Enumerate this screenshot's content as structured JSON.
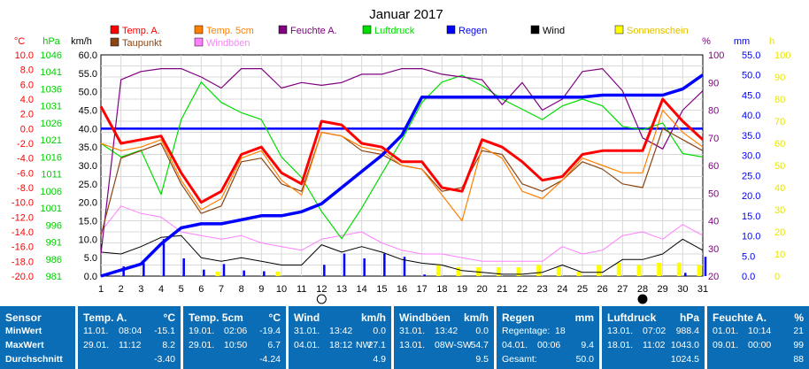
{
  "chart_data": {
    "type": "line",
    "title": "Januar 2017",
    "x": [
      1,
      2,
      3,
      4,
      5,
      6,
      7,
      8,
      9,
      10,
      11,
      12,
      13,
      14,
      15,
      16,
      17,
      18,
      19,
      20,
      21,
      22,
      23,
      24,
      25,
      26,
      27,
      28,
      29,
      30,
      31
    ],
    "axes": {
      "temp_c": {
        "label": "°C",
        "ticks": [
          "10.0",
          "8.0",
          "6.0",
          "4.0",
          "2.0",
          "0.0",
          "-2.0",
          "-4.0",
          "-6.0",
          "-8.0",
          "-10.0",
          "-12.0",
          "-14.0",
          "-16.0",
          "-18.0",
          "-20.0"
        ],
        "range": [
          -20,
          10
        ],
        "color": "#ff0000"
      },
      "pressure_hpa": {
        "label": "hPa",
        "ticks": [
          "1046",
          "1041",
          "1036",
          "1031",
          "1026",
          "1021",
          "1016",
          "1011",
          "1006",
          "1001",
          "996",
          "991",
          "986",
          "981"
        ],
        "range": [
          981,
          1046
        ],
        "color": "#00cc00"
      },
      "wind_kmh": {
        "label": "km/h",
        "ticks": [
          "60.0",
          "55.0",
          "50.0",
          "45.0",
          "40.0",
          "35.0",
          "30.0",
          "25.0",
          "20.0",
          "15.0",
          "10.0",
          "5.0",
          "0.0"
        ],
        "range": [
          0,
          60
        ],
        "color": "#000000"
      },
      "humidity_pct": {
        "label": "%",
        "ticks": [
          "100",
          "90",
          "80",
          "70",
          "60",
          "50",
          "40",
          "30",
          "20"
        ],
        "range": [
          20,
          100
        ],
        "color": "#800080"
      },
      "rain_mm": {
        "label": "mm",
        "ticks": [
          "55.0",
          "50.0",
          "45.0",
          "40.0",
          "35.0",
          "30.0",
          "25.0",
          "20.0",
          "15.0",
          "10.0",
          "5.0",
          "0.0"
        ],
        "range": [
          0,
          55
        ],
        "color": "#0000ff"
      },
      "sun_h": {
        "label": "h",
        "ticks": [
          "100",
          "90",
          "80",
          "70",
          "60",
          "50",
          "40",
          "30",
          "20",
          "10",
          "0"
        ],
        "range": [
          0,
          100
        ],
        "color": "#e6e600"
      }
    },
    "legend": [
      {
        "name": "Temp. A.",
        "color": "#ff0000"
      },
      {
        "name": "Temp. 5cm",
        "color": "#ff8000"
      },
      {
        "name": "Feuchte A.",
        "color": "#800080"
      },
      {
        "name": "Luftdruck",
        "color": "#00dd00"
      },
      {
        "name": "Regen",
        "color": "#0000ff"
      },
      {
        "name": "Wind",
        "color": "#000000"
      },
      {
        "name": "Sonnenschein",
        "color": "#ffff00"
      },
      {
        "name": "Taupunkt",
        "color": "#8b4513"
      },
      {
        "name": "Windböen",
        "color": "#ff80ff"
      }
    ],
    "series": [
      {
        "name": "Temp. A.",
        "axis": "temp_c",
        "color": "#ff0000",
        "width": 3,
        "values": [
          3.0,
          -2.0,
          -1.5,
          -1.0,
          -6.0,
          -10.0,
          -8.5,
          -3.5,
          -2.5,
          -6.0,
          -7.5,
          1.0,
          0.5,
          -2.0,
          -2.5,
          -4.5,
          -4.5,
          -8.0,
          -8.5,
          -1.5,
          -2.5,
          -4.5,
          -7.0,
          -6.5,
          -3.5,
          -3.0,
          -3.0,
          -3.0,
          4.0,
          1.0,
          -1.5
        ]
      },
      {
        "name": "Temp. 5cm",
        "axis": "temp_c",
        "color": "#ff8000",
        "width": 1.2,
        "values": [
          -2.0,
          -3.0,
          -2.5,
          -1.5,
          -7.0,
          -11.0,
          -9.5,
          -4.0,
          -3.0,
          -7.0,
          -9.0,
          -0.5,
          -1.0,
          -2.5,
          -3.0,
          -5.0,
          -5.5,
          -9.0,
          -12.5,
          -2.5,
          -4.0,
          -8.5,
          -9.5,
          -7.0,
          -4.0,
          -5.0,
          -6.0,
          -6.0,
          2.5,
          -0.5,
          -2.5
        ]
      },
      {
        "name": "Taupunkt",
        "axis": "temp_c",
        "color": "#8b4513",
        "width": 1.2,
        "values": [
          -14.5,
          -4.0,
          -3.0,
          -2.0,
          -7.5,
          -11.5,
          -10.5,
          -4.5,
          -4.0,
          -7.5,
          -8.5,
          -0.5,
          -1.0,
          -3.0,
          -3.5,
          -5.0,
          -5.5,
          -8.5,
          -8.0,
          -3.0,
          -3.5,
          -7.5,
          -8.5,
          -7.0,
          -4.5,
          -5.5,
          -7.5,
          -8.0,
          0.0,
          -1.5,
          -3.0
        ]
      },
      {
        "name": "Feuchte A.",
        "axis": "humidity_pct",
        "color": "#800080",
        "width": 1.2,
        "values": [
          28,
          91,
          94,
          95,
          95,
          92,
          88,
          95,
          95,
          88,
          90,
          89,
          90,
          93,
          93,
          95,
          95,
          93,
          92,
          91,
          82,
          90,
          80,
          84,
          94,
          95,
          87,
          70,
          66,
          80,
          87
        ]
      },
      {
        "name": "Luftdruck",
        "axis": "pressure_hpa",
        "color": "#00dd00",
        "width": 1.2,
        "values": [
          1020,
          1016,
          1018,
          1005,
          1027,
          1038,
          1032,
          1029,
          1027,
          1016,
          1010,
          1000,
          992,
          1001,
          1011,
          1021,
          1032,
          1038,
          1040,
          1037,
          1033,
          1030,
          1027,
          1031,
          1033,
          1031,
          1025,
          1024,
          1026,
          1017,
          1016
        ]
      },
      {
        "name": "Regen",
        "axis": "rain_mm",
        "color": "#0000ff",
        "width": 3.5,
        "values": [
          0,
          1.5,
          3,
          8,
          12,
          13,
          13,
          14,
          15,
          15,
          16,
          18,
          22,
          26,
          30,
          35,
          44.5,
          44.5,
          44.5,
          44.5,
          44.5,
          44.5,
          44.5,
          44.5,
          44.5,
          45,
          45,
          45,
          45,
          46.5,
          50
        ]
      },
      {
        "name": "Wind",
        "axis": "wind_kmh",
        "color": "#000000",
        "width": 1,
        "values": [
          6.5,
          6,
          8,
          10.5,
          11,
          5,
          4,
          5,
          4,
          3,
          3,
          8.5,
          6.5,
          8,
          6.5,
          4.5,
          3.5,
          3,
          1.5,
          1,
          0.5,
          0.5,
          1,
          3,
          1,
          1,
          4.5,
          4.5,
          6,
          10,
          7
        ]
      },
      {
        "name": "Windböen",
        "axis": "wind_kmh",
        "color": "#ff80ff",
        "width": 1,
        "values": [
          12,
          19,
          17,
          16,
          12,
          11,
          10,
          11,
          9,
          8,
          7,
          10,
          11,
          12,
          9,
          7,
          6,
          6,
          5,
          4,
          4,
          4,
          4,
          8,
          6,
          7,
          11,
          12,
          10,
          14,
          11
        ]
      },
      {
        "name": "Regen (täglich)",
        "axis": "rain_mm",
        "color": "#0000ff",
        "type": "bar",
        "width": 2.5,
        "values": [
          0.4,
          2.4,
          3.2,
          9.2,
          4.4,
          1.6,
          3,
          1.4,
          1.2,
          0,
          0,
          2.8,
          5.6,
          4.4,
          5.6,
          4.8,
          0.4,
          0,
          0,
          0,
          0,
          0,
          0,
          0,
          0,
          0,
          0,
          0,
          0,
          0.8,
          4.8
        ]
      },
      {
        "name": "Sonnenschein",
        "axis": "sun_h",
        "color": "#ffff00",
        "type": "bar",
        "width": 5,
        "values": [
          0,
          0,
          0,
          0,
          0,
          0,
          2,
          0,
          0,
          2,
          0,
          0,
          0,
          0,
          0,
          0,
          0,
          5,
          4,
          4,
          4,
          4,
          5,
          4,
          2,
          5,
          6,
          5,
          6,
          6,
          5
        ]
      }
    ],
    "reference_lines": [
      {
        "axis": "temp_c",
        "value": 0,
        "color": "#0000ff"
      }
    ],
    "moon_markers": [
      {
        "day": 12,
        "phase": "full"
      },
      {
        "day": 28,
        "phase": "new"
      }
    ],
    "grid": true
  },
  "stats": {
    "sensor": {
      "title": "Sensor",
      "row1": "MinWert",
      "row2": "MaxWert",
      "row3": "Durchschnitt"
    },
    "temp_a": {
      "title": "Temp. A.",
      "unit": "°C",
      "min_date": "11.01.",
      "min_time": "08:04",
      "min_val": "-15.1",
      "max_date": "29.01.",
      "max_time": "11:12",
      "max_val": "8.2",
      "avg": "-3.40"
    },
    "temp_5cm": {
      "title": "Temp. 5cm",
      "unit": "°C",
      "min_date": "19.01.",
      "min_time": "02:06",
      "min_val": "-19.4",
      "max_date": "29.01.",
      "max_time": "10:50",
      "max_val": "6.7",
      "avg": "-4.24"
    },
    "wind": {
      "title": "Wind",
      "unit": "km/h",
      "min_date": "31.01.",
      "min_time": "13:42",
      "min_val": "0.0",
      "max_date": "04.01.",
      "max_time": "18:12",
      "max_dir": "NW",
      "max_val": "27.1",
      "avg": "4.9"
    },
    "gusts": {
      "title": "Windböen",
      "unit": "km/h",
      "min_date": "31.01.",
      "min_time": "13:42",
      "min_val": "0.0",
      "max_date": "13.01.",
      "max_dir": "08W-SW",
      "max_val": "54.7",
      "avg": "9.5"
    },
    "rain": {
      "title": "Regen",
      "unit": "mm",
      "row1_label": "Regentage:",
      "row1_val": "18",
      "max_date": "04.01.",
      "max_time": "00:06",
      "max_val": "9.4",
      "row3_label": "Gesamt:",
      "row3_val": "50.0"
    },
    "pressure": {
      "title": "Luftdruck",
      "unit": "hPa",
      "min_date": "13.01.",
      "min_time": "07:02",
      "min_val": "988.4",
      "max_date": "18.01.",
      "max_time": "11:02",
      "max_val": "1043.0",
      "avg": "1024.5"
    },
    "humidity": {
      "title": "Feuchte A.",
      "unit": "%",
      "min_date": "01.01.",
      "min_time": "10:14",
      "min_val": "21",
      "max_date": "09.01.",
      "max_time": "00:00",
      "max_val": "99",
      "avg": "88"
    }
  }
}
